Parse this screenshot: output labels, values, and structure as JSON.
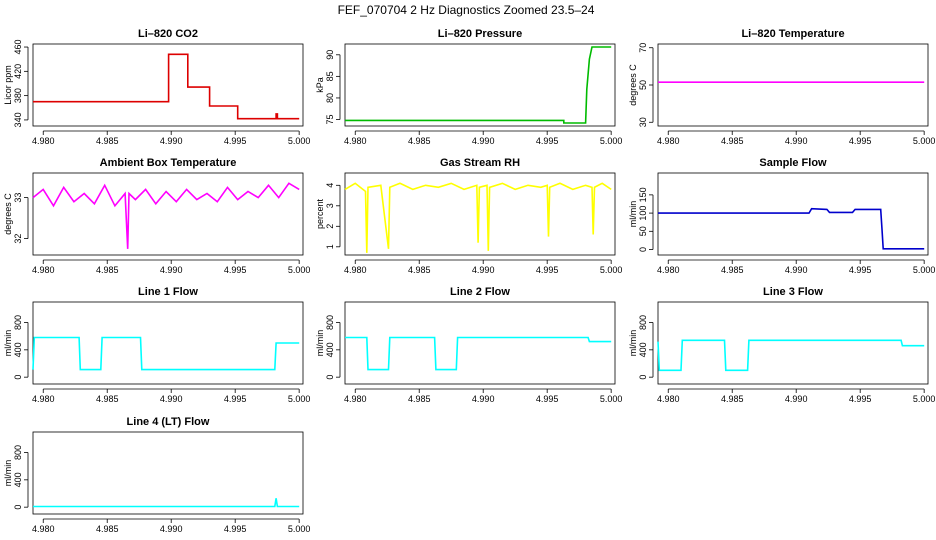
{
  "figure": {
    "title": "FEF_070704  2 Hz Diagnostics Zoomed 23.5–24"
  },
  "chart_data": [
    {
      "type": "line",
      "title": "Li–820 CO2",
      "ylabel": "Licor ppm",
      "color": "#dd0000",
      "xlim": [
        4.9792,
        5.0003
      ],
      "ylim": [
        330,
        465
      ],
      "xticks": [
        "4.980",
        "4.985",
        "4.990",
        "4.995",
        "5.000"
      ],
      "yticks": [
        340,
        380,
        420,
        460
      ],
      "series": [
        {
          "x": [
            4.9792,
            4.9898,
            4.9898,
            4.9913,
            4.9913,
            4.993,
            4.993,
            4.9952,
            4.9952,
            4.9982,
            4.9982,
            4.9983,
            4.9983,
            5.0
          ],
          "y": [
            370,
            370,
            448,
            448,
            394,
            394,
            363,
            363,
            342,
            342,
            350,
            350,
            342,
            342
          ]
        }
      ]
    },
    {
      "type": "line",
      "title": "Li–820 Pressure",
      "ylabel": "kPa",
      "color": "#00bb00",
      "xlim": [
        4.9792,
        5.0003
      ],
      "ylim": [
        73.5,
        92.5
      ],
      "xticks": [
        "4.980",
        "4.985",
        "4.990",
        "4.995",
        "5.000"
      ],
      "yticks": [
        75,
        80,
        85,
        90
      ],
      "series": [
        {
          "x": [
            4.9792,
            4.9963,
            4.9963,
            4.998,
            4.9981,
            4.9983,
            4.9985,
            5.0
          ],
          "y": [
            74.8,
            74.8,
            74.2,
            74.2,
            82.0,
            89.0,
            91.8,
            91.8
          ]
        }
      ]
    },
    {
      "type": "line",
      "title": "Li–820 Temperature",
      "ylabel": "degrees C",
      "color": "#ff00ff",
      "xlim": [
        4.9792,
        5.0003
      ],
      "ylim": [
        28,
        72
      ],
      "xticks": [
        "4.980",
        "4.985",
        "4.990",
        "4.995",
        "5.000"
      ],
      "yticks": [
        30,
        50,
        70
      ],
      "series": [
        {
          "x": [
            4.9792,
            5.0
          ],
          "y": [
            51.5,
            51.5
          ]
        }
      ]
    },
    {
      "type": "line",
      "title": "Ambient Box Temperature",
      "ylabel": "degrees C",
      "color": "#ff00ff",
      "xlim": [
        4.9792,
        5.0003
      ],
      "ylim": [
        31.6,
        33.6
      ],
      "xticks": [
        "4.980",
        "4.985",
        "4.990",
        "4.995",
        "5.000"
      ],
      "yticks": [
        32.0,
        33.0
      ],
      "series": [
        {
          "x": [
            4.9792,
            4.98,
            4.9808,
            4.9816,
            4.9824,
            4.9832,
            4.984,
            4.9848,
            4.9856,
            4.9864,
            4.9866,
            4.9867,
            4.9872,
            4.988,
            4.9888,
            4.9896,
            4.9904,
            4.9912,
            4.992,
            4.9928,
            4.9936,
            4.9944,
            4.9952,
            4.996,
            4.9968,
            4.9976,
            4.9984,
            4.9992,
            5.0
          ],
          "y": [
            33.0,
            33.2,
            32.8,
            33.25,
            32.9,
            33.1,
            32.85,
            33.3,
            32.8,
            33.1,
            31.75,
            33.1,
            32.95,
            33.2,
            32.85,
            33.15,
            32.9,
            33.2,
            32.95,
            33.1,
            32.9,
            33.25,
            32.95,
            33.15,
            33.0,
            33.3,
            33.0,
            33.35,
            33.2
          ]
        }
      ]
    },
    {
      "type": "line",
      "title": "Gas Stream RH",
      "ylabel": "percent",
      "color": "#ffff00",
      "xlim": [
        4.9792,
        5.0003
      ],
      "ylim": [
        0.6,
        4.6
      ],
      "xticks": [
        "4.980",
        "4.985",
        "4.990",
        "4.995",
        "5.000"
      ],
      "yticks": [
        1,
        2,
        3,
        4
      ],
      "series": [
        {
          "x": [
            4.9792,
            4.98,
            4.9808,
            4.9809,
            4.981,
            4.982,
            4.9826,
            4.9827,
            4.9835,
            4.9845,
            4.9855,
            4.9865,
            4.9875,
            4.9885,
            4.9895,
            4.9896,
            4.9897,
            4.9903,
            4.9904,
            4.9905,
            4.9915,
            4.9925,
            4.9935,
            4.9945,
            4.995,
            4.9951,
            4.9952,
            4.996,
            4.997,
            4.998,
            4.9985,
            4.9986,
            4.9987,
            4.9993,
            5.0
          ],
          "y": [
            3.8,
            4.1,
            3.7,
            0.7,
            3.9,
            4.0,
            0.9,
            3.9,
            4.1,
            3.8,
            4.0,
            3.9,
            4.1,
            3.8,
            4.0,
            1.2,
            3.9,
            4.0,
            0.8,
            3.9,
            4.1,
            3.8,
            4.0,
            3.9,
            4.0,
            1.5,
            3.9,
            4.1,
            3.8,
            4.0,
            3.9,
            1.6,
            3.9,
            4.1,
            3.8
          ]
        }
      ]
    },
    {
      "type": "line",
      "title": "Sample Flow",
      "ylabel": "ml/min",
      "color": "#0000cc",
      "xlim": [
        4.9792,
        5.0003
      ],
      "ylim": [
        -15,
        210
      ],
      "xticks": [
        "4.980",
        "4.985",
        "4.990",
        "4.995",
        "5.000"
      ],
      "yticks": [
        0,
        50,
        100,
        150
      ],
      "series": [
        {
          "x": [
            4.9792,
            4.991,
            4.9912,
            4.9924,
            4.9926,
            4.9944,
            4.9946,
            4.9966,
            4.9967,
            4.9968,
            5.0
          ],
          "y": [
            100,
            100,
            112,
            110,
            102,
            102,
            110,
            110,
            60,
            2,
            2
          ]
        }
      ]
    },
    {
      "type": "line",
      "title": "Line 1 Flow",
      "ylabel": "ml/min",
      "color": "#00ffff",
      "xlim": [
        4.9792,
        5.0003
      ],
      "ylim": [
        -100,
        1100
      ],
      "xticks": [
        "4.980",
        "4.985",
        "4.990",
        "4.995",
        "5.000"
      ],
      "yticks": [
        0,
        400,
        800
      ],
      "series": [
        {
          "x": [
            4.9792,
            4.9793,
            4.9828,
            4.9829,
            4.9845,
            4.9846,
            4.9876,
            4.9877,
            4.9981,
            4.9982,
            5.0
          ],
          "y": [
            110,
            580,
            580,
            110,
            110,
            580,
            580,
            110,
            110,
            500,
            500
          ]
        }
      ]
    },
    {
      "type": "line",
      "title": "Line 2 Flow",
      "ylabel": "ml/min",
      "color": "#00ffff",
      "xlim": [
        4.9792,
        5.0003
      ],
      "ylim": [
        -100,
        1100
      ],
      "xticks": [
        "4.980",
        "4.985",
        "4.990",
        "4.995",
        "5.000"
      ],
      "yticks": [
        0,
        400,
        800
      ],
      "series": [
        {
          "x": [
            4.9792,
            4.9809,
            4.981,
            4.9826,
            4.9827,
            4.9862,
            4.9863,
            4.9879,
            4.988,
            4.9982,
            4.9983,
            5.0
          ],
          "y": [
            580,
            580,
            110,
            110,
            580,
            580,
            110,
            110,
            580,
            580,
            520,
            520
          ]
        }
      ]
    },
    {
      "type": "line",
      "title": "Line 3 Flow",
      "ylabel": "ml/min",
      "color": "#00ffff",
      "xlim": [
        4.9792,
        5.0003
      ],
      "ylim": [
        -100,
        1100
      ],
      "xticks": [
        "4.980",
        "4.985",
        "4.990",
        "4.995",
        "5.000"
      ],
      "yticks": [
        0,
        400,
        800
      ],
      "series": [
        {
          "x": [
            4.9792,
            4.9793,
            4.981,
            4.9811,
            4.9844,
            4.9845,
            4.9862,
            4.9863,
            4.9982,
            4.9983,
            5.0
          ],
          "y": [
            520,
            100,
            100,
            540,
            540,
            100,
            100,
            540,
            540,
            460,
            460
          ]
        }
      ]
    },
    {
      "type": "line",
      "title": "Line 4 (LT) Flow",
      "ylabel": "ml/min",
      "color": "#00ffff",
      "xlim": [
        4.9792,
        5.0003
      ],
      "ylim": [
        -100,
        1100
      ],
      "xticks": [
        "4.980",
        "4.985",
        "4.990",
        "4.995",
        "5.000"
      ],
      "yticks": [
        0,
        400,
        800
      ],
      "series": [
        {
          "x": [
            4.9792,
            4.9981,
            4.9982,
            4.9983,
            5.0
          ],
          "y": [
            10,
            10,
            130,
            10,
            10
          ]
        }
      ]
    }
  ]
}
